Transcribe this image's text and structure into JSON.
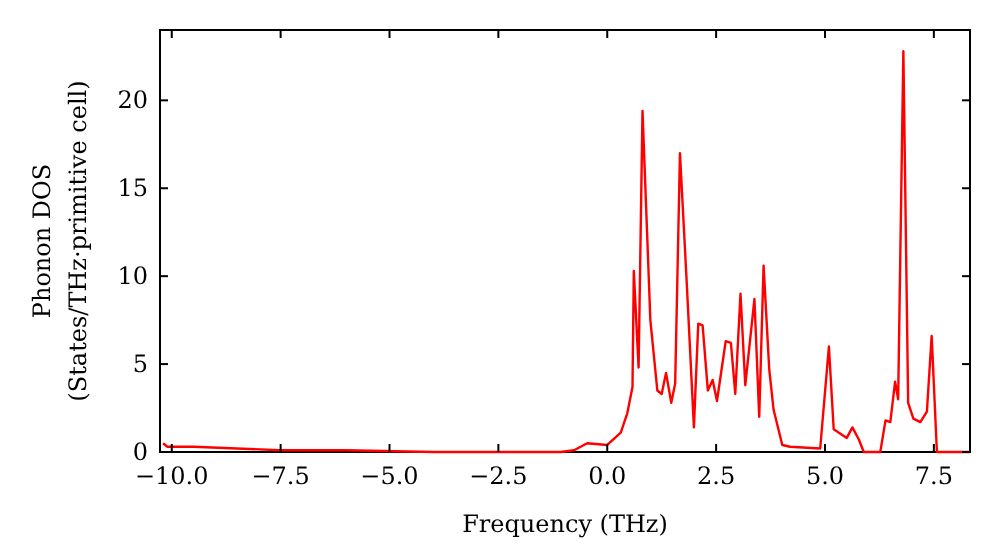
{
  "chart_data": {
    "type": "line",
    "xlabel": "Frequency (THz)",
    "ylabel": "Phonon DOS\n(States/THz·primitive cell)",
    "xlim": [
      -10.27,
      8.33
    ],
    "ylim": [
      0,
      24
    ],
    "xticks": [
      {
        "value": -10,
        "label": "−10.0"
      },
      {
        "value": -7.5,
        "label": "−7.5"
      },
      {
        "value": -5,
        "label": "−5.0"
      },
      {
        "value": -2.5,
        "label": "−2.5"
      },
      {
        "value": 0,
        "label": "0.0"
      },
      {
        "value": 2.5,
        "label": "2.5"
      },
      {
        "value": 5,
        "label": "5.0"
      },
      {
        "value": 7.5,
        "label": "7.5"
      }
    ],
    "yticks": [
      0,
      5,
      10,
      15,
      20
    ],
    "grid": false,
    "series": [
      {
        "color": "#ff0000",
        "x": [
          -10.2,
          -10.1,
          -9.5,
          -8.5,
          -7.5,
          -6,
          -4,
          -2,
          -1.07,
          -0.76,
          -0.46,
          0,
          0.31,
          0.46,
          0.58,
          0.61,
          0.72,
          0.81,
          0.99,
          1.15,
          1.25,
          1.35,
          1.47,
          1.56,
          1.67,
          1.83,
          1.99,
          2.09,
          2.19,
          2.31,
          2.42,
          2.52,
          2.72,
          2.84,
          2.94,
          3.06,
          3.17,
          3.38,
          3.49,
          3.59,
          3.72,
          3.82,
          4.02,
          4.2,
          4.89,
          5.09,
          5.2,
          5.5,
          5.63,
          5.78,
          5.89,
          6.27,
          6.39,
          6.5,
          6.61,
          6.68,
          6.8,
          6.91,
          7.03,
          7.19,
          7.34,
          7.45,
          7.57,
          8.33
        ],
        "values": [
          0.5,
          0.3,
          0.3,
          0.2,
          0.1,
          0.1,
          0,
          0,
          0,
          0.1,
          0.5,
          0.4,
          1.1,
          2.2,
          3.7,
          10.3,
          4.8,
          19.4,
          7.5,
          3.5,
          3.3,
          4.5,
          2.8,
          3.9,
          17,
          9.4,
          1.4,
          7.3,
          7.2,
          3.5,
          4.1,
          2.9,
          6.3,
          6.2,
          3.3,
          9,
          3.8,
          8.7,
          2,
          10.6,
          4.7,
          2.4,
          0.4,
          0.3,
          0.2,
          6,
          1.3,
          0.8,
          1.4,
          0.7,
          0,
          0,
          1.8,
          1.7,
          4,
          3,
          22.8,
          2.8,
          1.9,
          1.7,
          2.3,
          6.6,
          0,
          0
        ]
      }
    ]
  }
}
